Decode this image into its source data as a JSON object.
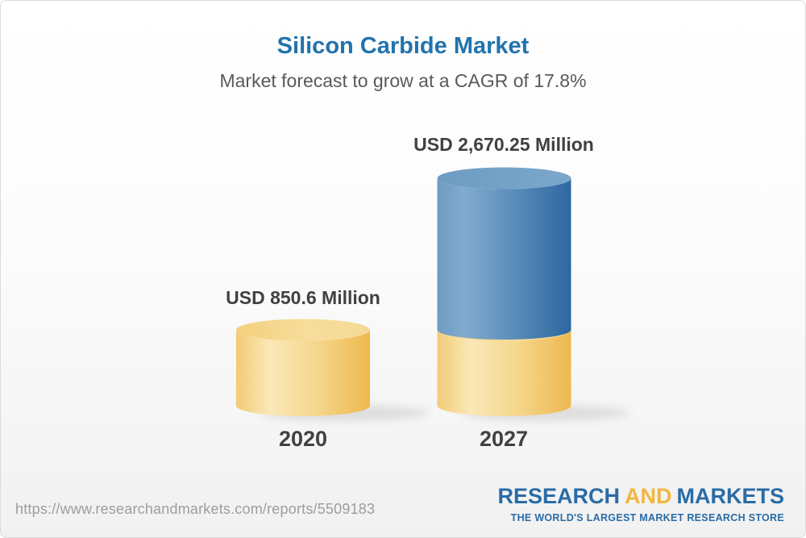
{
  "chart_data": {
    "type": "bar",
    "orientation": "vertical",
    "title": "Silicon Carbide Market",
    "subtitle": "Market forecast to grow at a CAGR of 17.8%",
    "cagr_percent": 17.8,
    "categories": [
      "2020",
      "2027"
    ],
    "values": [
      850.6,
      2670.25
    ],
    "unit": "USD Million",
    "value_labels": [
      "USD 850.6 Million",
      "USD 2,670.25 Million"
    ],
    "grid": false,
    "legend": false,
    "colors": {
      "bar_2020": "#F2C96F",
      "bar_2027_increment": "#4E86B2",
      "bar_2027_base": "#F2C96F",
      "title_text": "#2273AE",
      "subtitle_text": "#58595B",
      "label_text": "#414042"
    }
  },
  "footer": {
    "url": "https://www.researchandmarkets.com/reports/5509183",
    "logo": {
      "research": "RESEARCH",
      "and": "AND",
      "markets": "MARKETS",
      "tagline": "THE WORLD'S LARGEST MARKET RESEARCH STORE",
      "blue": "#2A6CA6",
      "gold": "#F1B63F"
    }
  }
}
